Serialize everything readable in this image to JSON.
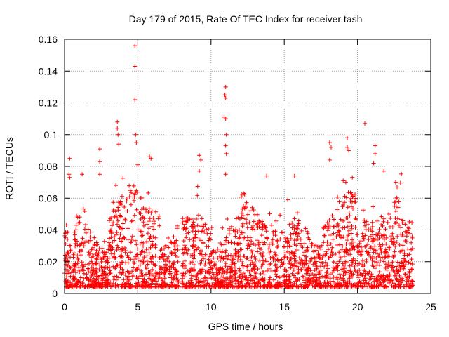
{
  "colors": {
    "points": "#ff0000",
    "grid": "#a0a0a0",
    "axis": "#000000"
  },
  "chart_data": {
    "type": "scatter",
    "title": "Day 179 of 2015, Rate Of TEC Index for receiver tash",
    "xlabel": "GPS time / hours",
    "ylabel": "ROTI / TECUs",
    "xlim": [
      0,
      25
    ],
    "ylim": [
      0,
      0.16
    ],
    "x_ticks": [
      0,
      5,
      10,
      15,
      20,
      25
    ],
    "x_tick_labels": [
      "0",
      "5",
      "10",
      "15",
      "20",
      "25"
    ],
    "y_ticks": [
      0,
      0.02,
      0.04,
      0.06,
      0.08,
      0.1,
      0.12,
      0.14,
      0.16
    ],
    "y_tick_labels": [
      "0",
      "0.02",
      "0.04",
      "0.06",
      "0.08",
      "0.1",
      "0.12",
      "0.14",
      "0.16"
    ],
    "grid": true,
    "marker": "+",
    "data_gap_hours": [
      7.8,
      8.0
    ],
    "x_range_of_data": [
      0,
      23.8
    ],
    "series": [
      {
        "name": "ROTI",
        "note": "dense cloud of points every few minutes, mostly 0.005-0.04 TECU; notable outliers listed",
        "outliers": [
          {
            "x": 4.8,
            "y": 0.156
          },
          {
            "x": 4.8,
            "y": 0.143
          },
          {
            "x": 4.8,
            "y": 0.122
          },
          {
            "x": 4.85,
            "y": 0.1
          },
          {
            "x": 4.9,
            "y": 0.095
          },
          {
            "x": 5.0,
            "y": 0.081
          },
          {
            "x": 3.6,
            "y": 0.108
          },
          {
            "x": 3.6,
            "y": 0.104
          },
          {
            "x": 3.65,
            "y": 0.1
          },
          {
            "x": 3.7,
            "y": 0.094
          },
          {
            "x": 3.5,
            "y": 0.068
          },
          {
            "x": 0.35,
            "y": 0.085
          },
          {
            "x": 0.3,
            "y": 0.075
          },
          {
            "x": 0.35,
            "y": 0.073
          },
          {
            "x": 2.4,
            "y": 0.091
          },
          {
            "x": 2.4,
            "y": 0.083
          },
          {
            "x": 2.4,
            "y": 0.075
          },
          {
            "x": 1.2,
            "y": 0.075
          },
          {
            "x": 5.8,
            "y": 0.086
          },
          {
            "x": 5.9,
            "y": 0.085
          },
          {
            "x": 9.2,
            "y": 0.087
          },
          {
            "x": 9.3,
            "y": 0.084
          },
          {
            "x": 9.2,
            "y": 0.077
          },
          {
            "x": 11.0,
            "y": 0.13
          },
          {
            "x": 10.95,
            "y": 0.125
          },
          {
            "x": 11.0,
            "y": 0.123
          },
          {
            "x": 10.9,
            "y": 0.111
          },
          {
            "x": 11.0,
            "y": 0.11
          },
          {
            "x": 11.05,
            "y": 0.1
          },
          {
            "x": 11.0,
            "y": 0.093
          },
          {
            "x": 11.05,
            "y": 0.088
          },
          {
            "x": 11.0,
            "y": 0.075
          },
          {
            "x": 13.8,
            "y": 0.074
          },
          {
            "x": 15.7,
            "y": 0.074
          },
          {
            "x": 18.1,
            "y": 0.095
          },
          {
            "x": 18.2,
            "y": 0.092
          },
          {
            "x": 18.1,
            "y": 0.084
          },
          {
            "x": 19.3,
            "y": 0.098
          },
          {
            "x": 19.3,
            "y": 0.092
          },
          {
            "x": 19.4,
            "y": 0.09
          },
          {
            "x": 19.2,
            "y": 0.07
          },
          {
            "x": 20.5,
            "y": 0.107
          },
          {
            "x": 21.2,
            "y": 0.093
          },
          {
            "x": 21.2,
            "y": 0.088
          },
          {
            "x": 21.1,
            "y": 0.082
          },
          {
            "x": 21.8,
            "y": 0.077
          },
          {
            "x": 22.6,
            "y": 0.07
          },
          {
            "x": 22.7,
            "y": 0.067
          }
        ]
      }
    ]
  }
}
